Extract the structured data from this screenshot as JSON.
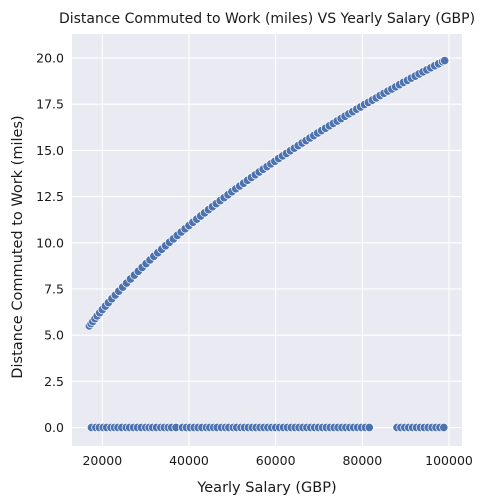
{
  "chart_data": {
    "type": "scatter",
    "title": "Distance Commuted to Work (miles) VS Yearly Salary (GBP)",
    "xlabel": "Yearly Salary (GBP)",
    "ylabel": "Distance Commuted to Work (miles)",
    "xlim": [
      13000,
      103000
    ],
    "ylim": [
      -1.0,
      21.3
    ],
    "xticks": [
      20000,
      40000,
      60000,
      80000,
      100000
    ],
    "xtick_labels": [
      "20000",
      "40000",
      "60000",
      "80000",
      "100000"
    ],
    "yticks": [
      0.0,
      2.5,
      5.0,
      7.5,
      10.0,
      12.5,
      15.0,
      17.5,
      20.0
    ],
    "ytick_labels": [
      "0.0",
      "2.5",
      "5.0",
      "7.5",
      "10.0",
      "12.5",
      "15.0",
      "17.5",
      "20.0"
    ],
    "grid": true,
    "background": "#eaeaf2",
    "point_color": "#4c72b0",
    "point_edge_color": "#ffffff",
    "series": [
      {
        "x": [
          17000,
          17400,
          17800,
          18300,
          18800,
          19400,
          20000,
          20700,
          21400,
          22200,
          23000,
          23800,
          24700,
          25600,
          26500,
          27400,
          28300,
          29200,
          30100,
          31000,
          31900,
          32800,
          33700,
          34600,
          35500,
          36400,
          37300,
          38200,
          39100,
          40000,
          40900,
          41800,
          42700,
          43600,
          44500,
          45400,
          46300,
          47200,
          48100,
          49000,
          49900,
          50800,
          51700,
          52600,
          53500,
          54400,
          55300,
          56200,
          57100,
          58000,
          58900,
          59800,
          60700,
          61600,
          62500,
          63400,
          64300,
          65200,
          66100,
          67000,
          67900,
          68800,
          69700,
          70600,
          71500,
          72400,
          73300,
          74200,
          75100,
          76000,
          76900,
          77800,
          78700,
          79600,
          80500,
          81400,
          82300,
          83200,
          84100,
          85000,
          85900,
          86800,
          87700,
          88600,
          89500,
          90400,
          91300,
          92200,
          93100,
          94000,
          94900,
          95800,
          96700,
          97600,
          98500,
          99000
        ],
        "y": [
          5.5,
          5.62,
          5.74,
          5.89,
          6.04,
          6.21,
          6.38,
          6.57,
          6.76,
          6.97,
          7.17,
          7.38,
          7.6,
          7.82,
          8.04,
          8.25,
          8.46,
          8.67,
          8.87,
          9.07,
          9.27,
          9.46,
          9.65,
          9.84,
          10.03,
          10.21,
          10.4,
          10.58,
          10.76,
          10.93,
          11.11,
          11.28,
          11.45,
          11.62,
          11.79,
          11.95,
          12.12,
          12.28,
          12.44,
          12.6,
          12.76,
          12.92,
          13.07,
          13.22,
          13.38,
          13.53,
          13.68,
          13.83,
          13.98,
          14.12,
          14.27,
          14.41,
          14.56,
          14.7,
          14.84,
          14.98,
          15.12,
          15.26,
          15.4,
          15.53,
          15.67,
          15.8,
          15.94,
          16.07,
          16.2,
          16.33,
          16.46,
          16.59,
          16.72,
          16.85,
          16.98,
          17.1,
          17.23,
          17.35,
          17.48,
          17.6,
          17.72,
          17.84,
          17.97,
          18.09,
          18.21,
          18.32,
          18.44,
          18.56,
          18.68,
          18.79,
          18.91,
          19.02,
          19.14,
          19.25,
          19.36,
          19.47,
          19.58,
          19.69,
          19.8,
          19.86
        ]
      },
      {
        "x": [
          17500,
          18500,
          19300,
          20200,
          21000,
          22000,
          22800,
          23600,
          24500,
          25500,
          26300,
          27200,
          28100,
          29000,
          30000,
          30800,
          31600,
          32500,
          33500,
          34300,
          35200,
          36000,
          37000,
          38500,
          39400,
          40300,
          41200,
          42100,
          43000,
          44000,
          44800,
          45700,
          46500,
          47500,
          48400,
          49200,
          50200,
          51000,
          52000,
          52800,
          53700,
          54600,
          55500,
          56400,
          57300,
          58200,
          59100,
          60000,
          60900,
          61800,
          62700,
          63600,
          64500,
          65400,
          66300,
          67200,
          68100,
          69000,
          69900,
          70800,
          71700,
          72600,
          73500,
          74400,
          75300,
          76200,
          77100,
          78000,
          78900,
          79800,
          80700,
          81600,
          88000,
          88900,
          89800,
          90700,
          91600,
          92500,
          93400,
          94300,
          95200,
          96100,
          97000,
          97900,
          98800
        ],
        "y": [
          0,
          0,
          0,
          0,
          0,
          0,
          0,
          0,
          0,
          0,
          0,
          0,
          0,
          0,
          0,
          0,
          0,
          0,
          0,
          0,
          0,
          0,
          0,
          0,
          0,
          0,
          0,
          0,
          0,
          0,
          0,
          0,
          0,
          0,
          0,
          0,
          0,
          0,
          0,
          0,
          0,
          0,
          0,
          0,
          0,
          0,
          0,
          0,
          0,
          0,
          0,
          0,
          0,
          0,
          0,
          0,
          0,
          0,
          0,
          0,
          0,
          0,
          0,
          0,
          0,
          0,
          0,
          0,
          0,
          0,
          0,
          0,
          0,
          0,
          0,
          0,
          0,
          0,
          0,
          0,
          0,
          0,
          0,
          0,
          0
        ]
      }
    ]
  }
}
